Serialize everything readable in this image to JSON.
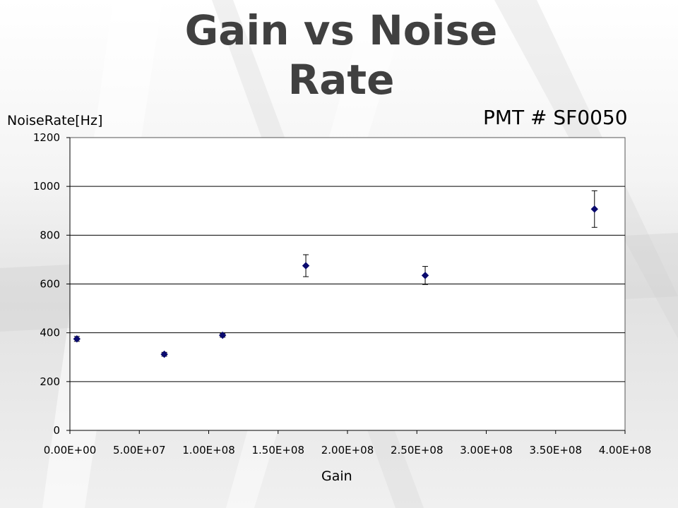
{
  "slide": {
    "title": "Gain vs Noise\nRate"
  },
  "colors": {
    "marker": "#0a0a6e",
    "gridline": "#000000",
    "plot_bg": "#ffffff",
    "title": "#404040"
  },
  "chart_data": {
    "type": "scatter",
    "title": "PMT # SF0050",
    "xlabel": "Gain",
    "ylabel": "NoiseRate[Hz]",
    "xlim": [
      0,
      400000000
    ],
    "ylim": [
      0,
      1200
    ],
    "x_ticks": [
      {
        "value": 0,
        "label": "0.00E+00"
      },
      {
        "value": 50000000,
        "label": "5.00E+07"
      },
      {
        "value": 100000000,
        "label": "1.00E+08"
      },
      {
        "value": 150000000,
        "label": "1.50E+08"
      },
      {
        "value": 200000000,
        "label": "2.00E+08"
      },
      {
        "value": 250000000,
        "label": "2.50E+08"
      },
      {
        "value": 300000000,
        "label": "3.00E+08"
      },
      {
        "value": 350000000,
        "label": "3.50E+08"
      },
      {
        "value": 400000000,
        "label": "4.00E+08"
      }
    ],
    "y_ticks": [
      {
        "value": 0,
        "label": "0"
      },
      {
        "value": 200,
        "label": "200"
      },
      {
        "value": 400,
        "label": "400"
      },
      {
        "value": 600,
        "label": "600"
      },
      {
        "value": 800,
        "label": "800"
      },
      {
        "value": 1000,
        "label": "1000"
      },
      {
        "value": 1200,
        "label": "1200"
      }
    ],
    "grid": "horizontal",
    "marker": "diamond",
    "points": [
      {
        "x": 5000000,
        "y": 375,
        "err": 10
      },
      {
        "x": 68000000,
        "y": 312,
        "err": 8
      },
      {
        "x": 110000000,
        "y": 390,
        "err": 8
      },
      {
        "x": 170000000,
        "y": 675,
        "err": 45
      },
      {
        "x": 256000000,
        "y": 635,
        "err": 37
      },
      {
        "x": 378000000,
        "y": 907,
        "err": 75
      }
    ]
  }
}
